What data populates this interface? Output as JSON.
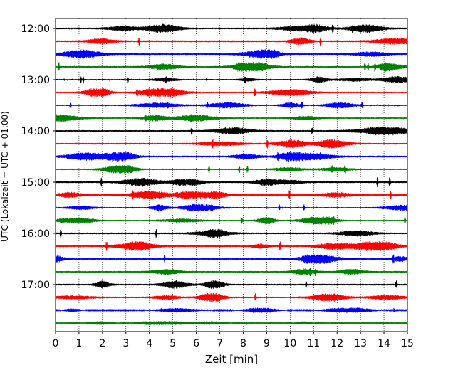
{
  "chart_data": {
    "type": "line",
    "subtype": "helicorder",
    "xlabel": "Zeit  [min]",
    "ylabel": "UTC (Lokalzeit = UTC + 01:00)",
    "xlim": [
      0,
      15
    ],
    "x_ticks": [
      0,
      1,
      2,
      3,
      4,
      5,
      6,
      7,
      8,
      9,
      10,
      11,
      12,
      13,
      14,
      15
    ],
    "y_ticks": [
      "12:00",
      "13:00",
      "14:00",
      "15:00",
      "16:00",
      "17:00"
    ],
    "trace_interval_minutes": 15,
    "trace_colors": [
      "#000000",
      "#ff0000",
      "#0000ff",
      "#008000"
    ],
    "grid": "vertical dotted at each minute",
    "traces": [
      {
        "start": "12:00",
        "amplitude": 0.6
      },
      {
        "start": "12:15",
        "amplitude": 0.65
      },
      {
        "start": "12:30",
        "amplitude": 0.6
      },
      {
        "start": "12:45",
        "amplitude": 0.6
      },
      {
        "start": "13:00",
        "amplitude": 0.45
      },
      {
        "start": "13:15",
        "amplitude": 0.55
      },
      {
        "start": "13:30",
        "amplitude": 0.45
      },
      {
        "start": "13:45",
        "amplitude": 0.5
      },
      {
        "start": "14:00",
        "amplitude": 0.55
      },
      {
        "start": "14:15",
        "amplitude": 0.6
      },
      {
        "start": "14:30",
        "amplitude": 0.65
      },
      {
        "start": "14:45",
        "amplitude": 0.5
      },
      {
        "start": "15:00",
        "amplitude": 0.65
      },
      {
        "start": "15:15",
        "amplitude": 0.65
      },
      {
        "start": "15:30",
        "amplitude": 0.45
      },
      {
        "start": "15:45",
        "amplitude": 0.5
      },
      {
        "start": "16:00",
        "amplitude": 0.6
      },
      {
        "start": "16:15",
        "amplitude": 0.6
      },
      {
        "start": "16:30",
        "amplitude": 0.6
      },
      {
        "start": "16:45",
        "amplitude": 0.55
      },
      {
        "start": "17:00",
        "amplitude": 0.6
      },
      {
        "start": "17:15",
        "amplitude": 0.55
      },
      {
        "start": "17:30",
        "amplitude": 0.25
      },
      {
        "start": "17:45",
        "amplitude": 0.15
      }
    ]
  }
}
